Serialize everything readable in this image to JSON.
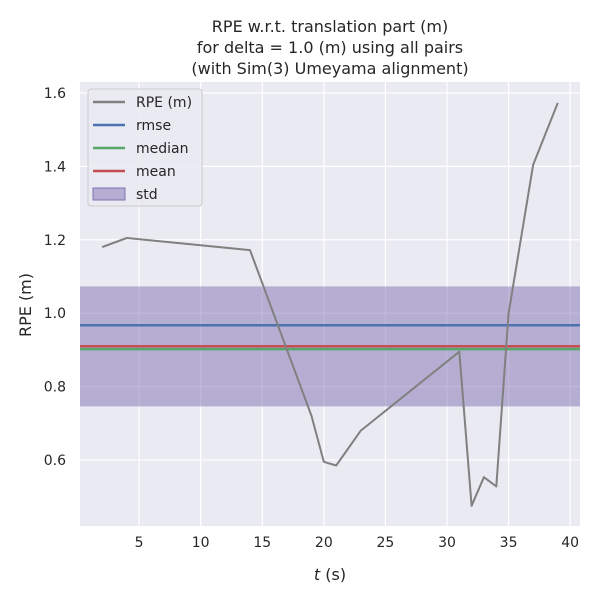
{
  "chart_data": {
    "type": "line",
    "title_lines": [
      "RPE w.r.t. translation part (m)",
      "for delta = 1.0 (m) using all pairs",
      "(with Sim(3) Umeyama alignment)"
    ],
    "xlabel_var": "t",
    "xlabel_unit": " (s)",
    "ylabel": "RPE (m)",
    "xlim": [
      0.2,
      40.8
    ],
    "ylim": [
      0.42,
      1.63
    ],
    "xticks": [
      5,
      10,
      15,
      20,
      25,
      30,
      35,
      40
    ],
    "yticks": [
      0.6,
      0.8,
      1.0,
      1.2,
      1.4,
      1.6
    ],
    "ytick_labels": [
      "0.6",
      "0.8",
      "1.0",
      "1.2",
      "1.4",
      "1.6"
    ],
    "grid": true,
    "legend_position": "top-left",
    "series": [
      {
        "name": "RPE (m)",
        "color": "#808080",
        "x": [
          2,
          4,
          14,
          19,
          20,
          21,
          23,
          31,
          32,
          33,
          34,
          35,
          37,
          39
        ],
        "y": [
          1.18,
          1.205,
          1.172,
          0.72,
          0.595,
          0.585,
          0.68,
          0.895,
          0.475,
          0.553,
          0.528,
          1.0,
          1.405,
          1.573
        ]
      }
    ],
    "stats": {
      "rmse": {
        "label": "rmse",
        "value": 0.967,
        "color": "#4c72b0"
      },
      "median": {
        "label": "median",
        "value": 0.902,
        "color": "#55a868"
      },
      "mean": {
        "label": "mean",
        "value": 0.91,
        "color": "#c44e52"
      },
      "std": {
        "label": "std",
        "lower": 0.746,
        "upper": 1.073,
        "color": "#8172b2"
      }
    },
    "legend": [
      "RPE (m)",
      "rmse",
      "median",
      "mean",
      "std"
    ]
  }
}
